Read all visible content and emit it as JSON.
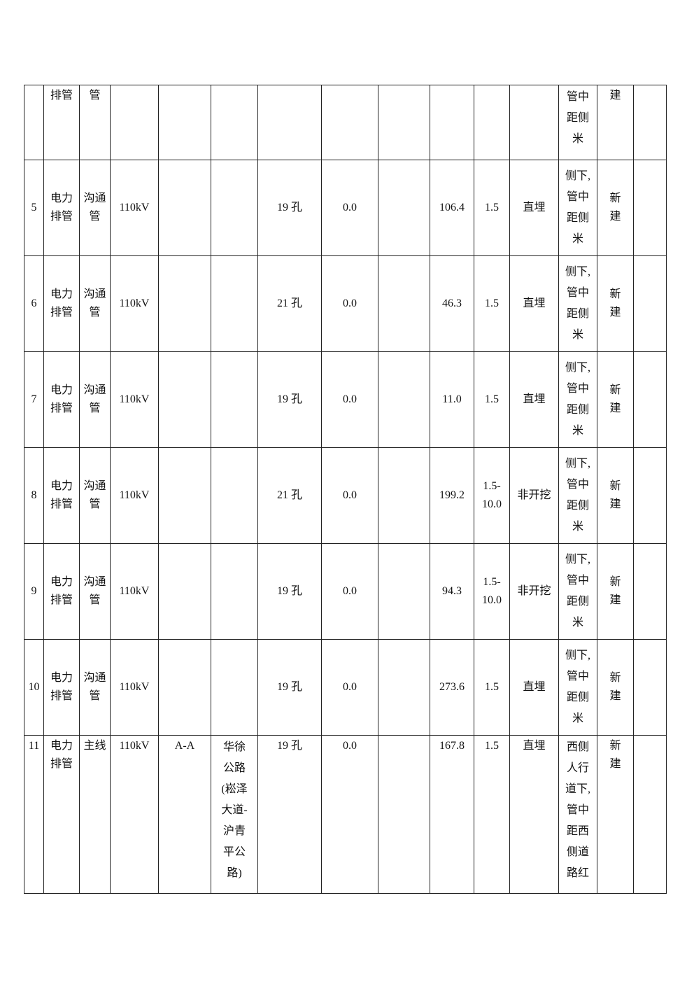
{
  "table": {
    "rows": [
      {
        "cells": [
          "",
          "排管",
          "管",
          "",
          "",
          "",
          "",
          "",
          "",
          "",
          "",
          "",
          "管中\n距侧\n米",
          "建",
          ""
        ]
      },
      {
        "cells": [
          "5",
          "电力\n排管",
          "沟通\n管",
          "110kV",
          "",
          "",
          "19 孔",
          "0.0",
          "",
          "106.4",
          "1.5",
          "直埋",
          "侧下,\n管中\n距侧\n米",
          "新\n建",
          ""
        ]
      },
      {
        "cells": [
          "6",
          "电力\n排管",
          "沟通\n管",
          "110kV",
          "",
          "",
          "21 孔",
          "0.0",
          "",
          "46.3",
          "1.5",
          "直埋",
          "侧下,\n管中\n距侧\n米",
          "新\n建",
          ""
        ]
      },
      {
        "cells": [
          "7",
          "电力\n排管",
          "沟通\n管",
          "110kV",
          "",
          "",
          "19 孔",
          "0.0",
          "",
          "11.0",
          "1.5",
          "直埋",
          "侧下,\n管中\n距侧\n米",
          "新\n建",
          ""
        ]
      },
      {
        "cells": [
          "8",
          "电力\n排管",
          "沟通\n管",
          "110kV",
          "",
          "",
          "21 孔",
          "0.0",
          "",
          "199.2",
          "1.5-\n10.0",
          "非开挖",
          "侧下,\n管中\n距侧\n米",
          "新\n建",
          ""
        ]
      },
      {
        "cells": [
          "9",
          "电力\n排管",
          "沟通\n管",
          "110kV",
          "",
          "",
          "19 孔",
          "0.0",
          "",
          "94.3",
          "1.5-\n10.0",
          "非开挖",
          "侧下,\n管中\n距侧\n米",
          "新\n建",
          ""
        ]
      },
      {
        "cells": [
          "10",
          "电力\n排管",
          "沟通\n管",
          "110kV",
          "",
          "",
          "19 孔",
          "0.0",
          "",
          "273.6",
          "1.5",
          "直埋",
          "侧下,\n管中\n距侧\n米",
          "新\n建",
          ""
        ]
      },
      {
        "cells": [
          "11",
          "电力\n排管",
          "主线",
          "110kV",
          "A-A",
          "华徐\n公路\n(崧泽\n大道-\n沪青\n平公\n路)",
          "19 孔",
          "0.0",
          "",
          "167.8",
          "1.5",
          "直埋",
          "西侧\n人行\n道下,\n管中\n距西\n侧道\n路红",
          "新\n建",
          ""
        ]
      }
    ]
  }
}
